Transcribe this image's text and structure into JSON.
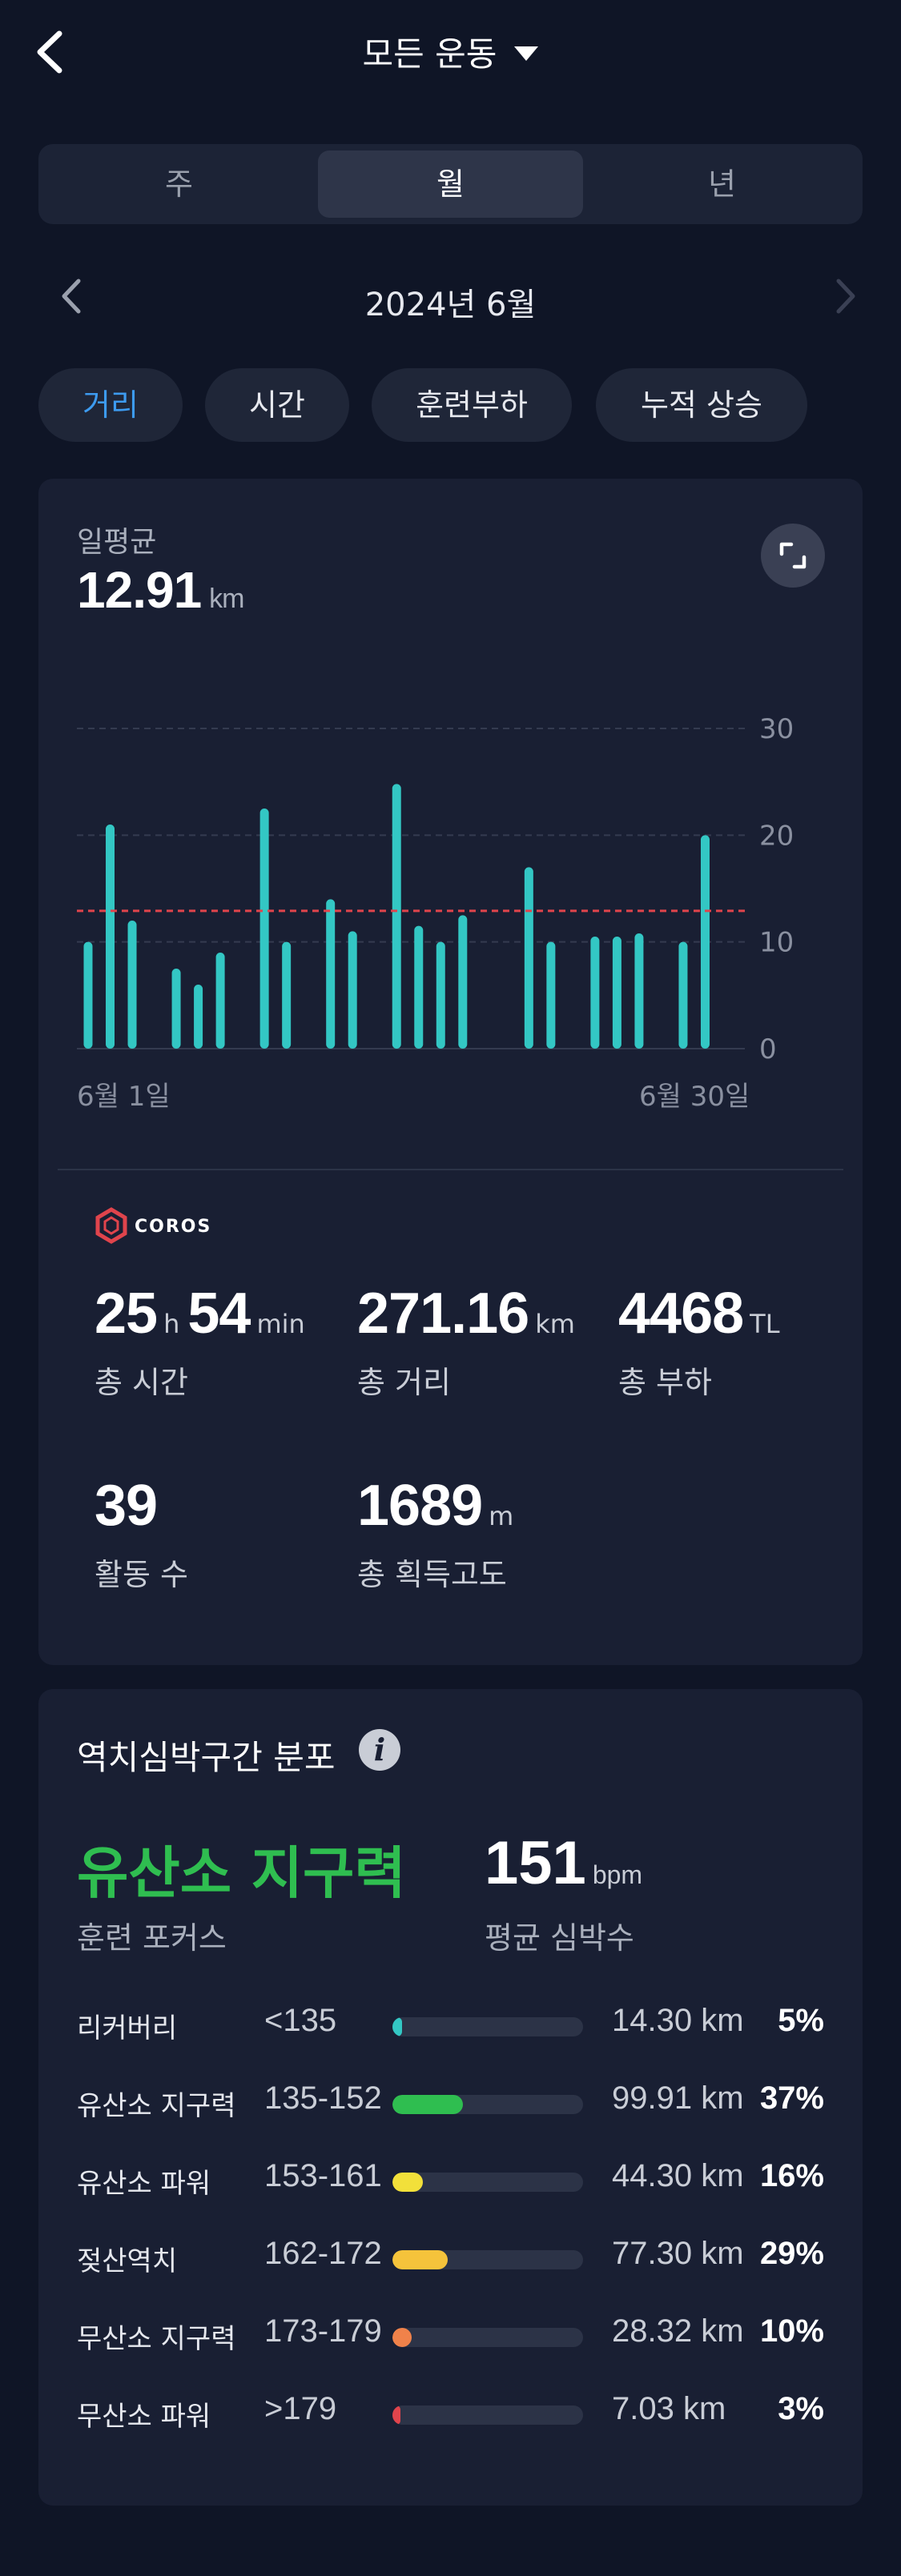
{
  "header": {
    "title": "모든 운동"
  },
  "period_tabs": [
    "주",
    "월",
    "년"
  ],
  "period_active_index": 1,
  "month_nav": {
    "label": "2024년 6월"
  },
  "metric_chips": [
    "거리",
    "시간",
    "훈련부하",
    "누적 상승"
  ],
  "metric_active_index": 0,
  "daily_avg": {
    "label": "일평균",
    "value": "12.91",
    "unit": "km"
  },
  "chart_data": {
    "type": "bar",
    "x": [
      1,
      2,
      3,
      4,
      5,
      6,
      7,
      8,
      9,
      10,
      11,
      12,
      13,
      14,
      15,
      16,
      17,
      18,
      19,
      20,
      21,
      22,
      23,
      24,
      25,
      26,
      27,
      28,
      29,
      30
    ],
    "values": [
      10,
      21,
      12,
      0,
      7.5,
      6,
      9,
      0,
      22.5,
      10,
      0,
      14,
      11,
      0,
      24.8,
      11.5,
      10,
      12.5,
      0,
      0,
      17,
      10,
      0,
      10.5,
      10.5,
      10.8,
      0,
      10,
      20,
      0
    ],
    "average": 12.91,
    "ylim": [
      0,
      30
    ],
    "yticks": [
      "0",
      "10",
      "20",
      "30"
    ],
    "x_start_label": "6월 1일",
    "x_end_label": "6월 30일",
    "bar_color": "#33c7c4",
    "avg_line_color": "#e0444c",
    "grid": true
  },
  "brand": "COROS",
  "stats": [
    {
      "value_a": "25",
      "unit_a": "h",
      "value_b": "54",
      "unit_b": "min",
      "label": "총 시간"
    },
    {
      "value_a": "271.16",
      "unit_a": "km",
      "label": "총 거리"
    },
    {
      "value_a": "4468",
      "unit_a": "TL",
      "label": "총 부하"
    },
    {
      "value_a": "39",
      "unit_a": "",
      "label": "활동 수"
    },
    {
      "value_a": "1689",
      "unit_a": "m",
      "label": "총 획득고도"
    }
  ],
  "hr_section": {
    "title": "역치심박구간 분포",
    "focus_value": "유산소 지구력",
    "focus_label": "훈련 포커스",
    "avg_hr_value": "151",
    "avg_hr_unit": "bpm",
    "avg_hr_label": "평균 심박수",
    "zones": [
      {
        "name": "리커버리",
        "range": "<135",
        "distance": "14.30 km",
        "pct": "5%",
        "fraction": 0.05,
        "color": "#33c7c4"
      },
      {
        "name": "유산소 지구력",
        "range": "135-152",
        "distance": "99.91 km",
        "pct": "37%",
        "fraction": 0.37,
        "color": "#2fbe50"
      },
      {
        "name": "유산소 파워",
        "range": "153-161",
        "distance": "44.30 km",
        "pct": "16%",
        "fraction": 0.16,
        "color": "#f2e03a"
      },
      {
        "name": "젖산역치",
        "range": "162-172",
        "distance": "77.30 km",
        "pct": "29%",
        "fraction": 0.29,
        "color": "#f5c33b"
      },
      {
        "name": "무산소 지구력",
        "range": "173-179",
        "distance": "28.32 km",
        "pct": "10%",
        "fraction": 0.1,
        "color": "#f0824a"
      },
      {
        "name": "무산소 파워",
        "range": ">179",
        "distance": "7.03 km",
        "pct": "3%",
        "fraction": 0.03,
        "color": "#e0444c"
      }
    ]
  }
}
